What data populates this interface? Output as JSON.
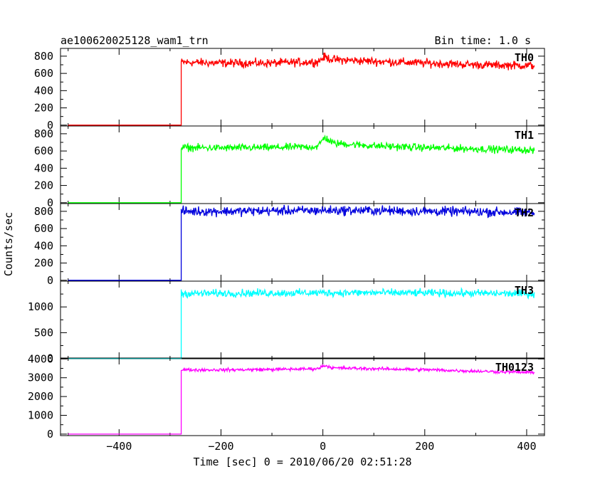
{
  "header": {
    "title": "ae100620025128_wam1_trn",
    "bin_time": "Bin time: 1.0 s"
  },
  "chart_data": {
    "type": "line",
    "title": "ae100620025128_wam1_trn",
    "xlabel": "Time [sec] 0 = 2010/06/20 02:51:28",
    "ylabel": "Counts/sec",
    "xlim": [
      -515,
      435
    ],
    "x_ticks": [
      -400,
      -200,
      0,
      200,
      400
    ],
    "x_tick_labels": [
      "−400",
      "−200",
      "0",
      "200",
      "400"
    ],
    "grid": false,
    "panels": [
      {
        "name": "TH0",
        "color": "#ff0000",
        "ylim": [
          -10,
          890
        ],
        "y_ticks": [
          0,
          200,
          400,
          600,
          800
        ],
        "y_tick_labels": [
          "0",
          "200",
          "400",
          "600",
          "800"
        ],
        "series": {
          "step_x": -278,
          "pre_level": 0,
          "x": [
            -278,
            -200,
            -100,
            -10,
            3,
            20,
            100,
            200,
            300,
            415
          ],
          "y": [
            730,
            720,
            720,
            735,
            790,
            760,
            740,
            720,
            700,
            690
          ],
          "noise": 40
        }
      },
      {
        "name": "TH1",
        "color": "#00ff00",
        "ylim": [
          -10,
          890
        ],
        "y_ticks": [
          0,
          200,
          400,
          600,
          800
        ],
        "y_tick_labels": [
          "0",
          "200",
          "400",
          "600",
          "800"
        ],
        "series": {
          "step_x": -278,
          "pre_level": 0,
          "x": [
            -278,
            -200,
            -100,
            -10,
            3,
            20,
            100,
            200,
            300,
            415
          ],
          "y": [
            640,
            635,
            640,
            650,
            760,
            690,
            660,
            640,
            625,
            610
          ],
          "noise": 35
        }
      },
      {
        "name": "TH2",
        "color": "#0000dd",
        "ylim": [
          -10,
          890
        ],
        "y_ticks": [
          0,
          200,
          400,
          600,
          800
        ],
        "y_tick_labels": [
          "0",
          "200",
          "400",
          "600",
          "800"
        ],
        "series": {
          "step_x": -278,
          "pre_level": 0,
          "x": [
            -278,
            -200,
            -100,
            0,
            100,
            200,
            300,
            415
          ],
          "y": [
            800,
            800,
            805,
            810,
            810,
            800,
            795,
            785
          ],
          "noise": 45
        }
      },
      {
        "name": "TH3",
        "color": "#00ffff",
        "ylim": [
          -5,
          1500
        ],
        "y_ticks": [
          0,
          500,
          1000
        ],
        "y_tick_labels": [
          "0",
          "500",
          "1000"
        ],
        "series": {
          "step_x": -278,
          "pre_level": 0,
          "x": [
            -278,
            -200,
            -100,
            0,
            100,
            200,
            300,
            415
          ],
          "y": [
            1260,
            1265,
            1270,
            1275,
            1275,
            1270,
            1265,
            1255
          ],
          "noise": 60
        }
      },
      {
        "name": "TH0123",
        "color": "#ff00ff",
        "ylim": [
          -80,
          4050
        ],
        "y_ticks": [
          0,
          1000,
          2000,
          3000,
          4000
        ],
        "y_tick_labels": [
          "0",
          "1000",
          "2000",
          "3000",
          "4000"
        ],
        "series": {
          "step_x": -278,
          "pre_level": 0,
          "x": [
            -278,
            -200,
            -100,
            -10,
            3,
            20,
            100,
            200,
            300,
            415
          ],
          "y": [
            3420,
            3420,
            3440,
            3480,
            3660,
            3520,
            3480,
            3430,
            3350,
            3280
          ],
          "noise": 70
        }
      }
    ]
  }
}
